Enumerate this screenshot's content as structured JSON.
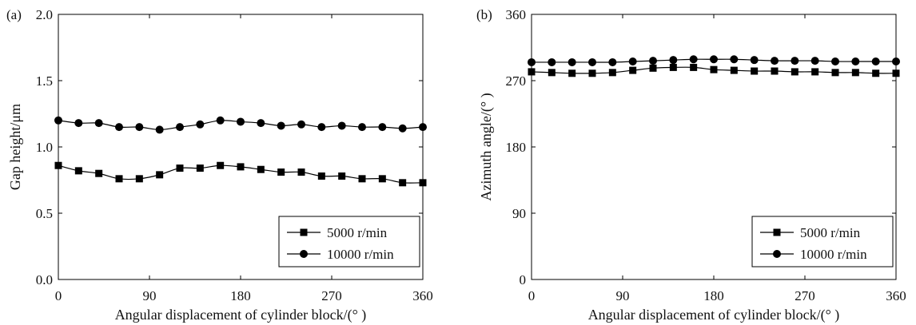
{
  "chart_data": [
    {
      "panel_label": "(a)",
      "type": "line",
      "xlabel": "Angular displacement of cylinder block/(° )",
      "ylabel": "Gap height/μm",
      "xlim": [
        0,
        360
      ],
      "ylim": [
        0,
        2.0
      ],
      "xticks": [
        0,
        90,
        180,
        270,
        360
      ],
      "xtick_labels": [
        "0",
        "90",
        "180",
        "270",
        "360"
      ],
      "yticks": [
        0,
        0.5,
        1.0,
        1.5,
        2.0
      ],
      "ytick_labels": [
        "0.0",
        "0.5",
        "1.0",
        "1.5",
        "2.0"
      ],
      "legend_position": "bottom-right",
      "x": [
        0,
        20,
        40,
        60,
        80,
        100,
        120,
        140,
        160,
        180,
        200,
        220,
        240,
        260,
        280,
        300,
        320,
        340,
        360
      ],
      "series": [
        {
          "name": "5000 r/min",
          "marker": "square",
          "values": [
            0.86,
            0.82,
            0.8,
            0.76,
            0.76,
            0.79,
            0.84,
            0.84,
            0.86,
            0.85,
            0.83,
            0.81,
            0.81,
            0.78,
            0.78,
            0.76,
            0.76,
            0.73,
            0.73
          ]
        },
        {
          "name": "10000 r/min",
          "marker": "circle",
          "values": [
            1.2,
            1.18,
            1.18,
            1.15,
            1.15,
            1.13,
            1.15,
            1.17,
            1.2,
            1.19,
            1.18,
            1.16,
            1.17,
            1.15,
            1.16,
            1.15,
            1.15,
            1.14,
            1.15
          ]
        }
      ]
    },
    {
      "panel_label": "(b)",
      "type": "line",
      "xlabel": "Angular displacement of cylinder block/(° )",
      "ylabel": "Azimuth angle/(° )",
      "xlim": [
        0,
        360
      ],
      "ylim": [
        0,
        360
      ],
      "xticks": [
        0,
        90,
        180,
        270,
        360
      ],
      "xtick_labels": [
        "0",
        "90",
        "180",
        "270",
        "360"
      ],
      "yticks": [
        0,
        90,
        180,
        270,
        360
      ],
      "ytick_labels": [
        "0",
        "90",
        "180",
        "270",
        "360"
      ],
      "legend_position": "bottom-right",
      "x": [
        0,
        20,
        40,
        60,
        80,
        100,
        120,
        140,
        160,
        180,
        200,
        220,
        240,
        260,
        280,
        300,
        320,
        340,
        360
      ],
      "series": [
        {
          "name": "5000 r/min",
          "marker": "square",
          "values": [
            282,
            281,
            280,
            280,
            281,
            284,
            287,
            288,
            288,
            285,
            284,
            283,
            283,
            282,
            282,
            281,
            281,
            280,
            280
          ]
        },
        {
          "name": "10000 r/min",
          "marker": "circle",
          "values": [
            295,
            295,
            295,
            295,
            295,
            296,
            297,
            298,
            299,
            299,
            299,
            298,
            297,
            297,
            297,
            296,
            296,
            296,
            296
          ]
        }
      ]
    }
  ]
}
